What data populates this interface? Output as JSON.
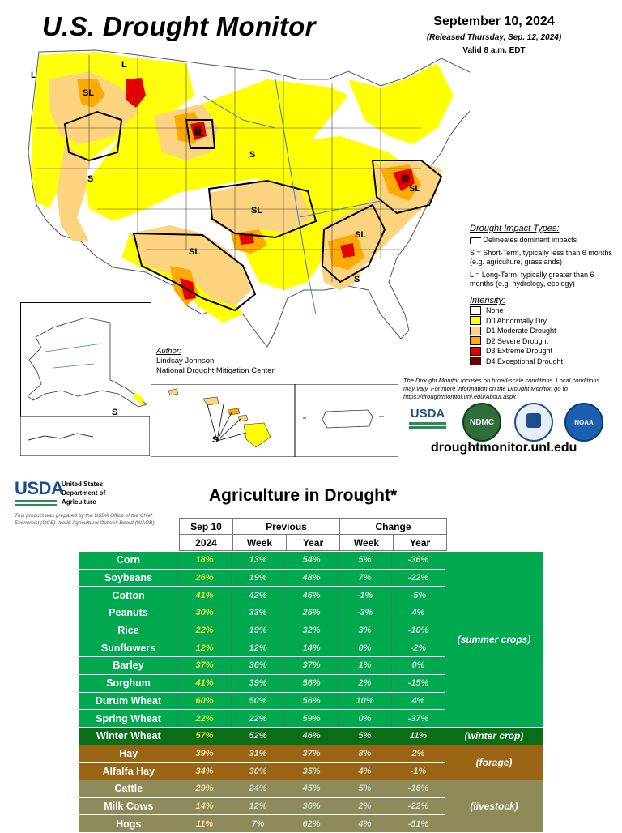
{
  "header": {
    "title": "U.S. Drought Monitor",
    "date": "September 10, 2024",
    "released": "(Released Thursday, Sep. 12, 2024)",
    "valid": "Valid 8 a.m. EDT"
  },
  "map_labels": {
    "sl": "SL",
    "s": "S",
    "l": "L"
  },
  "impact_legend": {
    "title": "Drought Impact Types:",
    "delineates": "Delineates dominant impacts",
    "short_term": "S = Short-Term, typically less than 6 months (e.g. agriculture, grasslands)",
    "long_term": "L = Long-Term, typically greater than 6 months (e.g. hydrology, ecology)"
  },
  "intensity_legend": {
    "title": "Intensity:",
    "items": [
      {
        "label": "None",
        "color": "#ffffff"
      },
      {
        "label": "D0 Abnormally Dry",
        "color": "#ffff00"
      },
      {
        "label": "D1 Moderate Drought",
        "color": "#fcd37f"
      },
      {
        "label": "D2 Severe Drought",
        "color": "#ffaa00"
      },
      {
        "label": "D3 Extreme Drought",
        "color": "#e60000"
      },
      {
        "label": "D4 Exceptional Drought",
        "color": "#730000"
      }
    ]
  },
  "author": {
    "heading": "Author:",
    "name": "Lindsay Johnson",
    "org": "National Drought Mitigation Center"
  },
  "disclaimer": "The Drought Monitor focuses on broad-scale conditions. Local conditions may vary. For more information on the Drought Monitor, go to https://droughtmonitor.unl.edu/About.aspx",
  "logos": {
    "usda": "USDA",
    "ndmc": "NDMC",
    "noaa": "NOAA"
  },
  "url": "droughtmonitor.unl.edu",
  "usda_block": {
    "logo": "USDA",
    "name_line1": "United States",
    "name_line2": "Department of",
    "name_line3": "Agriculture",
    "note": "This product was prepared by the USDA Office of the Chief Economist (OCE) World Agricultural Outlook Board (WAOB)."
  },
  "ag_table": {
    "title": "Agriculture in Drought*",
    "header": {
      "sep10": "Sep 10",
      "previous": "Previous",
      "change": "Change",
      "year2024": "2024",
      "week": "Week",
      "year": "Year"
    },
    "rows": [
      {
        "crop": "Corn",
        "cur": "18%",
        "pw": "13%",
        "py": "54%",
        "cw": "5%",
        "cy": "-36%"
      },
      {
        "crop": "Soybeans",
        "cur": "26%",
        "pw": "19%",
        "py": "48%",
        "cw": "7%",
        "cy": "-22%"
      },
      {
        "crop": "Cotton",
        "cur": "41%",
        "pw": "42%",
        "py": "46%",
        "cw": "-1%",
        "cy": "-5%"
      },
      {
        "crop": "Peanuts",
        "cur": "30%",
        "pw": "33%",
        "py": "26%",
        "cw": "-3%",
        "cy": "4%"
      },
      {
        "crop": "Rice",
        "cur": "22%",
        "pw": "19%",
        "py": "32%",
        "cw": "3%",
        "cy": "-10%"
      },
      {
        "crop": "Sunflowers",
        "cur": "12%",
        "pw": "12%",
        "py": "14%",
        "cw": "0%",
        "cy": "-2%"
      },
      {
        "crop": "Barley",
        "cur": "37%",
        "pw": "36%",
        "py": "37%",
        "cw": "1%",
        "cy": "0%"
      },
      {
        "crop": "Sorghum",
        "cur": "41%",
        "pw": "39%",
        "py": "56%",
        "cw": "2%",
        "cy": "-15%"
      },
      {
        "crop": "Durum Wheat",
        "cur": "60%",
        "pw": "50%",
        "py": "56%",
        "cw": "10%",
        "cy": "4%"
      },
      {
        "crop": "Spring Wheat",
        "cur": "22%",
        "pw": "22%",
        "py": "59%",
        "cw": "0%",
        "cy": "-37%"
      },
      {
        "crop": "Winter Wheat",
        "cur": "57%",
        "pw": "52%",
        "py": "46%",
        "cw": "5%",
        "cy": "11%"
      },
      {
        "crop": "Hay",
        "cur": "39%",
        "pw": "31%",
        "py": "37%",
        "cw": "8%",
        "cy": "2%"
      },
      {
        "crop": "Alfalfa Hay",
        "cur": "34%",
        "pw": "30%",
        "py": "35%",
        "cw": "4%",
        "cy": "-1%"
      },
      {
        "crop": "Cattle",
        "cur": "29%",
        "pw": "24%",
        "py": "45%",
        "cw": "5%",
        "cy": "-16%"
      },
      {
        "crop": "Milk Cows",
        "cur": "14%",
        "pw": "12%",
        "py": "36%",
        "cw": "2%",
        "cy": "-22%"
      },
      {
        "crop": "Hogs",
        "cur": "11%",
        "pw": "7%",
        "py": "62%",
        "cw": "4%",
        "cy": "-51%"
      }
    ],
    "groups": {
      "summer": "(summer crops)",
      "winter": "(winter crop)",
      "forage": "(forage)",
      "livestock": "(livestock)"
    }
  }
}
